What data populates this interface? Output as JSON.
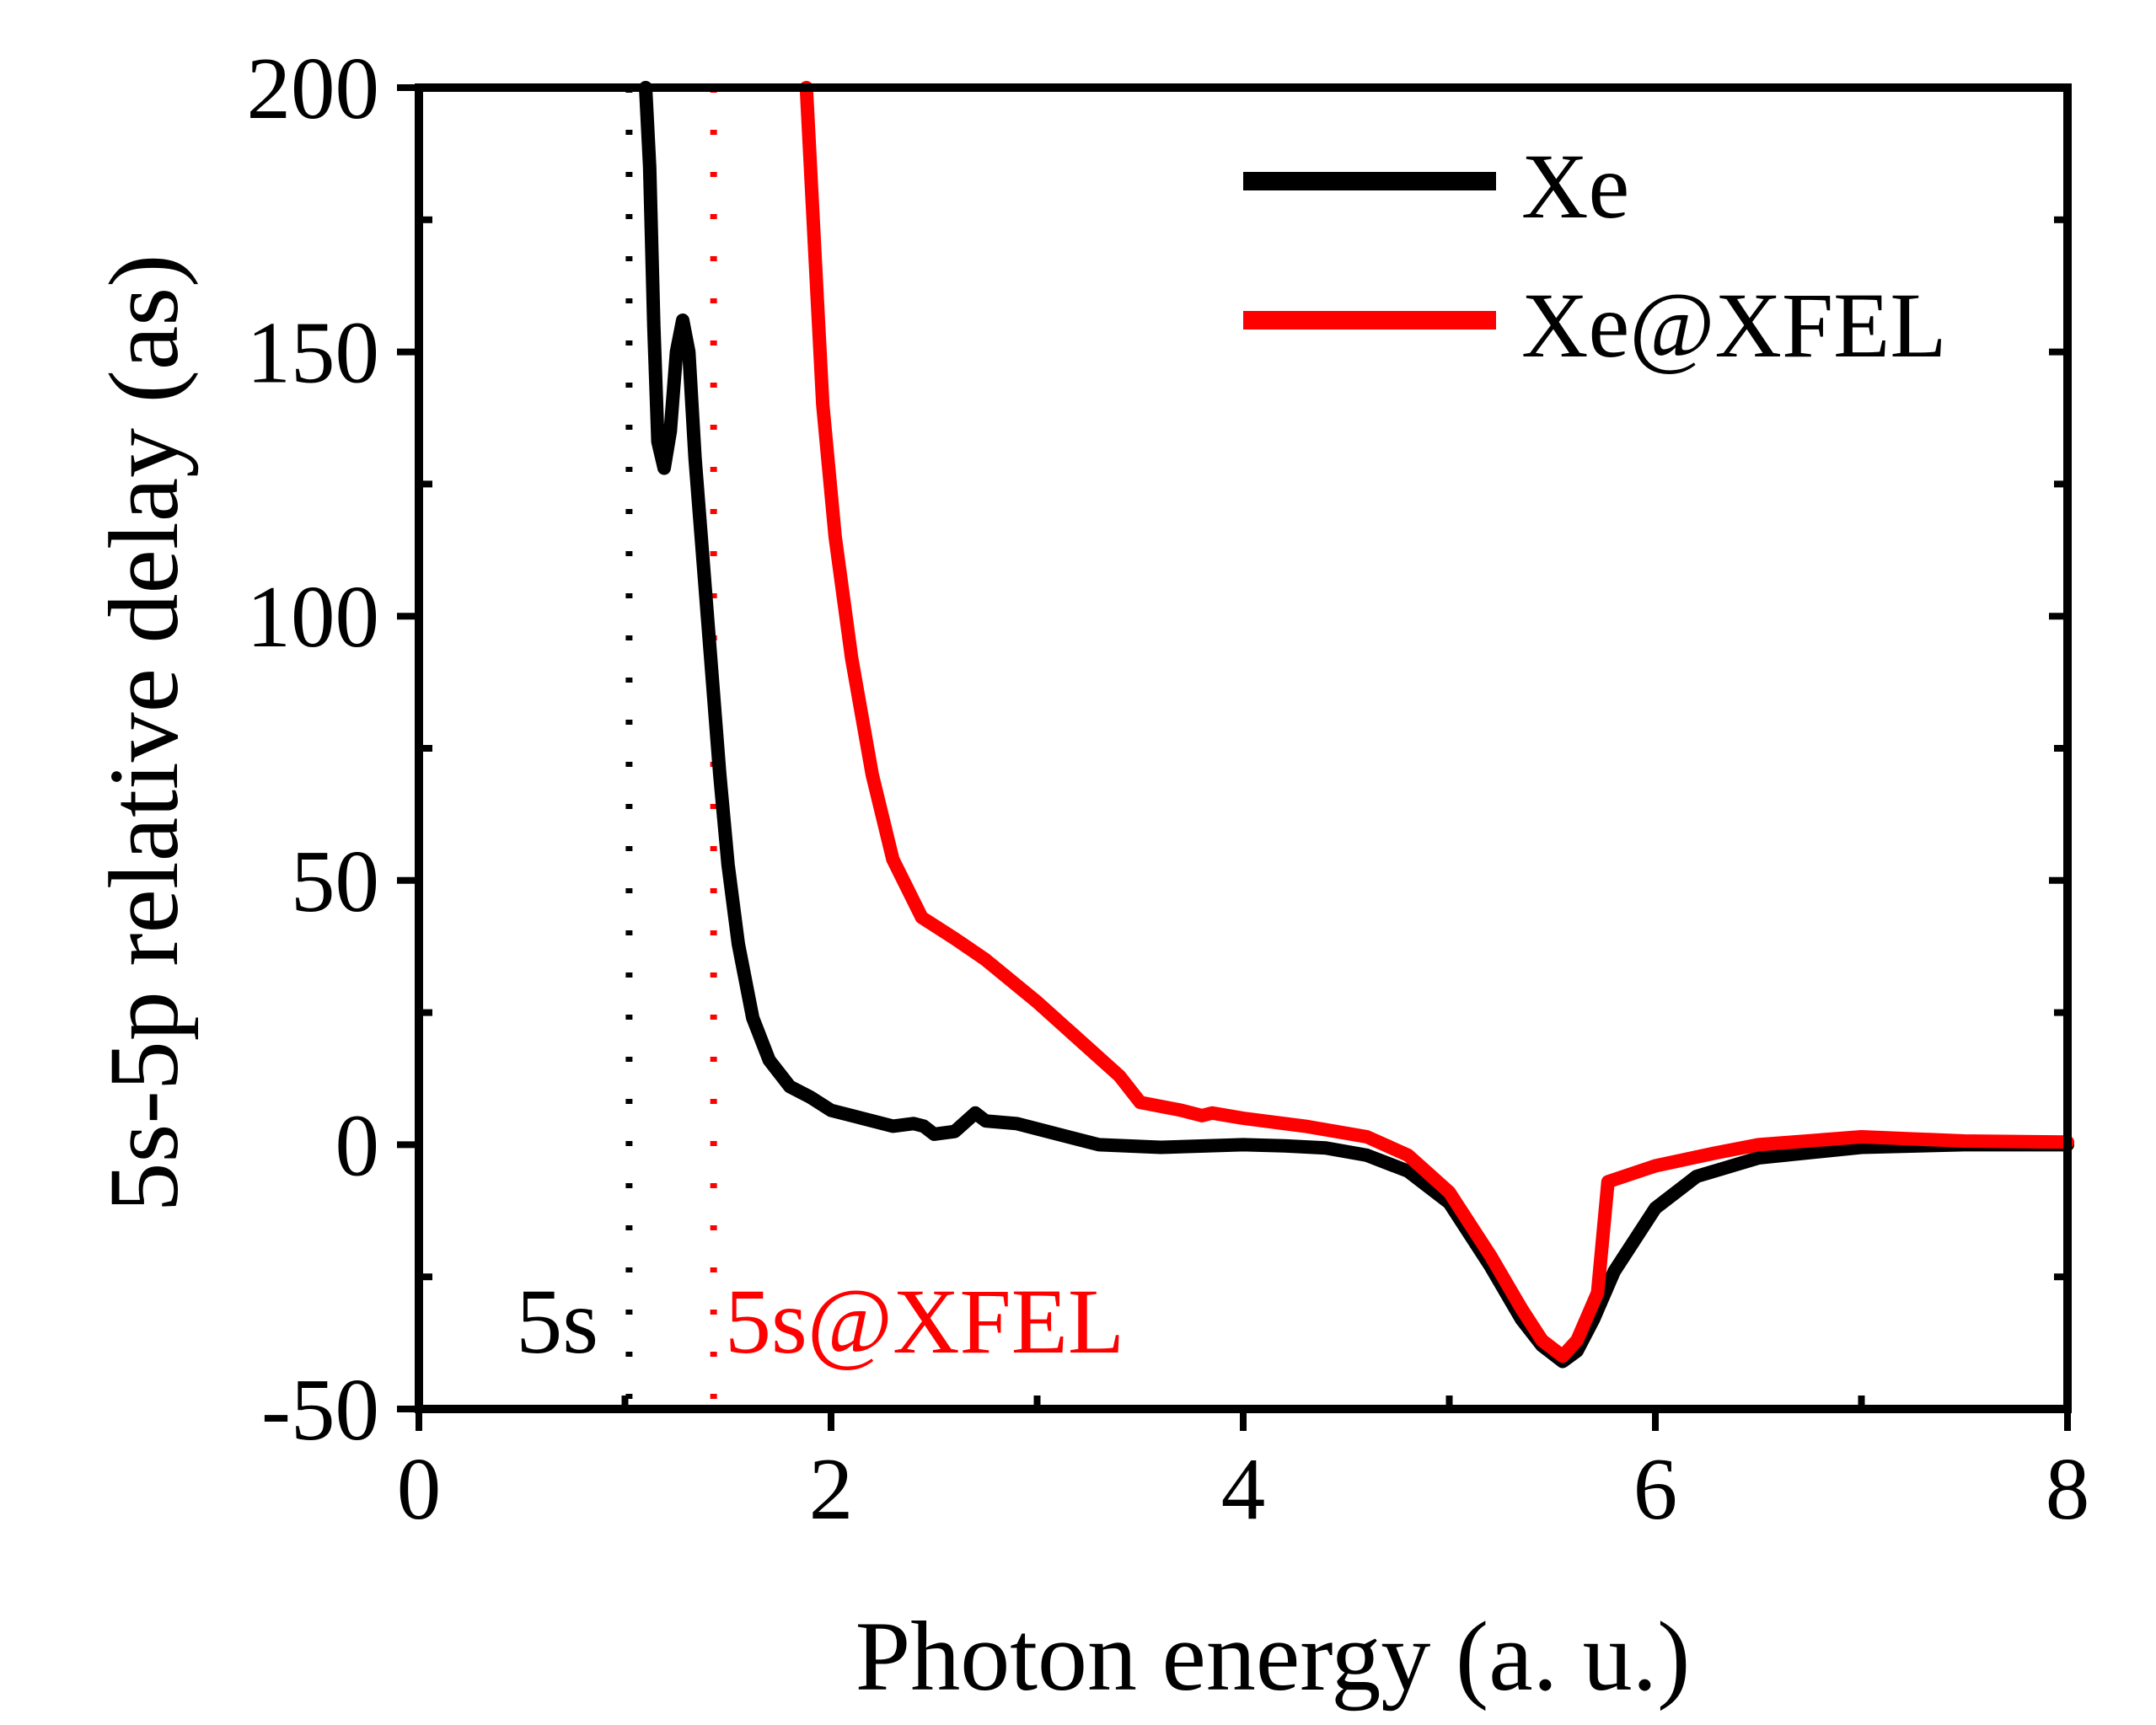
{
  "chart_data": {
    "type": "line",
    "title": "",
    "xlabel": "Photon energy (a. u.)",
    "ylabel": "5s-5p relative delay (as)",
    "xlim": [
      0,
      8
    ],
    "ylim": [
      -50,
      200
    ],
    "xticks": [
      0,
      2,
      4,
      6,
      8
    ],
    "yticks": [
      -50,
      0,
      50,
      100,
      150,
      200
    ],
    "xtick_labels": [
      "0",
      "2",
      "4",
      "6",
      "8"
    ],
    "ytick_labels": [
      "-50",
      "0",
      "50",
      "100",
      "150",
      "200"
    ],
    "grid": false,
    "legend_position": "top-right",
    "series": [
      {
        "name": "Xe",
        "color": "#000000",
        "points": [
          [
            1.1,
            200
          ],
          [
            1.12,
            185
          ],
          [
            1.14,
            155
          ],
          [
            1.16,
            133
          ],
          [
            1.19,
            128
          ],
          [
            1.22,
            135
          ],
          [
            1.25,
            150
          ],
          [
            1.28,
            156
          ],
          [
            1.31,
            150
          ],
          [
            1.34,
            130
          ],
          [
            1.38,
            110
          ],
          [
            1.42,
            90
          ],
          [
            1.46,
            70
          ],
          [
            1.5,
            53
          ],
          [
            1.55,
            38
          ],
          [
            1.62,
            24
          ],
          [
            1.7,
            16
          ],
          [
            1.8,
            11
          ],
          [
            1.9,
            9
          ],
          [
            2.0,
            6.5
          ],
          [
            2.15,
            5
          ],
          [
            2.3,
            3.5
          ],
          [
            2.4,
            4
          ],
          [
            2.45,
            3.5
          ],
          [
            2.5,
            2
          ],
          [
            2.6,
            2.5
          ],
          [
            2.7,
            6
          ],
          [
            2.75,
            4.5
          ],
          [
            2.9,
            4
          ],
          [
            3.1,
            2
          ],
          [
            3.3,
            0
          ],
          [
            3.6,
            -0.5
          ],
          [
            4.0,
            0
          ],
          [
            4.2,
            -0.2
          ],
          [
            4.4,
            -0.6
          ],
          [
            4.6,
            -2
          ],
          [
            4.8,
            -5
          ],
          [
            5.0,
            -11
          ],
          [
            5.2,
            -23
          ],
          [
            5.35,
            -33
          ],
          [
            5.45,
            -38
          ],
          [
            5.55,
            -41
          ],
          [
            5.62,
            -39
          ],
          [
            5.7,
            -33
          ],
          [
            5.8,
            -24
          ],
          [
            6.0,
            -12
          ],
          [
            6.2,
            -6
          ],
          [
            6.5,
            -2.5
          ],
          [
            7.0,
            -0.5
          ],
          [
            7.5,
            0
          ],
          [
            8.0,
            0
          ]
        ]
      },
      {
        "name": "Xe@XFEL",
        "color": "#ff0000",
        "points": [
          [
            1.88,
            200
          ],
          [
            1.92,
            170
          ],
          [
            1.96,
            140
          ],
          [
            2.02,
            115
          ],
          [
            2.1,
            92
          ],
          [
            2.2,
            70
          ],
          [
            2.3,
            54
          ],
          [
            2.44,
            43
          ],
          [
            2.6,
            39
          ],
          [
            2.75,
            35
          ],
          [
            3.0,
            27
          ],
          [
            3.2,
            20
          ],
          [
            3.4,
            13
          ],
          [
            3.5,
            8
          ],
          [
            3.7,
            6.5
          ],
          [
            3.8,
            5.5
          ],
          [
            3.85,
            6
          ],
          [
            4.0,
            5
          ],
          [
            4.3,
            3.5
          ],
          [
            4.6,
            1.5
          ],
          [
            4.8,
            -2
          ],
          [
            5.0,
            -9
          ],
          [
            5.2,
            -21
          ],
          [
            5.35,
            -31
          ],
          [
            5.45,
            -37
          ],
          [
            5.55,
            -40
          ],
          [
            5.62,
            -37
          ],
          [
            5.72,
            -28
          ],
          [
            5.77,
            -7
          ],
          [
            6.0,
            -4
          ],
          [
            6.3,
            -1.5
          ],
          [
            6.5,
            0
          ],
          [
            7.0,
            1.5
          ],
          [
            7.5,
            0.7
          ],
          [
            8.0,
            0.5
          ]
        ]
      }
    ],
    "annotations": [
      {
        "text": "5s",
        "color": "#000000",
        "threshold_x": 1.02
      },
      {
        "text": "5s@XFEL",
        "color": "#ff0000",
        "threshold_x": 1.43
      }
    ]
  }
}
